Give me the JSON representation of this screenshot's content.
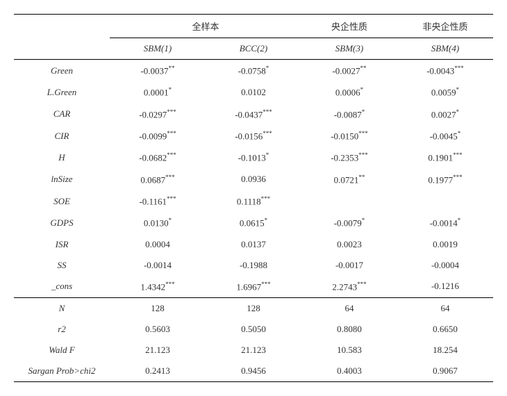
{
  "group_headers": {
    "g1": "全样本",
    "g2": "央企性质",
    "g3": "非央企性质"
  },
  "col_headers": {
    "c1": "SBM(1)",
    "c2": "BCC(2)",
    "c3": "SBM(3)",
    "c4": "SBM(4)"
  },
  "rows": [
    {
      "label": "Green",
      "v1": "-0.0037**",
      "v2": "-0.0758*",
      "v3": "-0.0027**",
      "v4": "-0.0043***"
    },
    {
      "label": "L.Green",
      "v1": "0.0001*",
      "v2": "0.0102",
      "v3": "0.0006*",
      "v4": "0.0059*"
    },
    {
      "label": "CAR",
      "v1": "-0.0297***",
      "v2": "-0.0437***",
      "v3": "-0.0087*",
      "v4": "0.0027*"
    },
    {
      "label": "CIR",
      "v1": "-0.0099***",
      "v2": "-0.0156***",
      "v3": "-0.0150***",
      "v4": "-0.0045*"
    },
    {
      "label": "H",
      "v1": "-0.0682***",
      "v2": "-0.1013*",
      "v3": "-0.2353***",
      "v4": "0.1901***"
    },
    {
      "label": "lnSize",
      "v1": "0.0687***",
      "v2": "0.0936",
      "v3": "0.0721**",
      "v4": "0.1977***"
    },
    {
      "label": "SOE",
      "v1": "-0.1161***",
      "v2": "0.1118***",
      "v3": "",
      "v4": ""
    },
    {
      "label": "GDPS",
      "v1": "0.0130*",
      "v2": "0.0615*",
      "v3": "-0.0079*",
      "v4": "-0.0014*"
    },
    {
      "label": "ISR",
      "v1": "0.0004",
      "v2": "0.0137",
      "v3": "0.0023",
      "v4": "0.0019"
    },
    {
      "label": "SS",
      "v1": "-0.0014",
      "v2": "-0.1988",
      "v3": "-0.0017",
      "v4": "-0.0004"
    },
    {
      "label": "_cons",
      "v1": "1.4342***",
      "v2": "1.6967***",
      "v3": "2.2743***",
      "v4": "-0.1216"
    }
  ],
  "stats": [
    {
      "label": "N",
      "v1": "128",
      "v2": "128",
      "v3": "64",
      "v4": "64"
    },
    {
      "label": "r2",
      "v1": "0.5603",
      "v2": "0.5050",
      "v3": "0.8080",
      "v4": "0.6650"
    },
    {
      "label": "Wald F",
      "v1": "21.123",
      "v2": "21.123",
      "v3": "10.583",
      "v4": "18.254"
    },
    {
      "label": "Sargan Prob>chi2",
      "v1": "0.2413",
      "v2": "0.9456",
      "v3": "0.4003",
      "v4": "0.9067"
    }
  ],
  "style": {
    "font_size": 13,
    "text_color": "#333333",
    "background": "#ffffff",
    "border_color": "#000000"
  }
}
